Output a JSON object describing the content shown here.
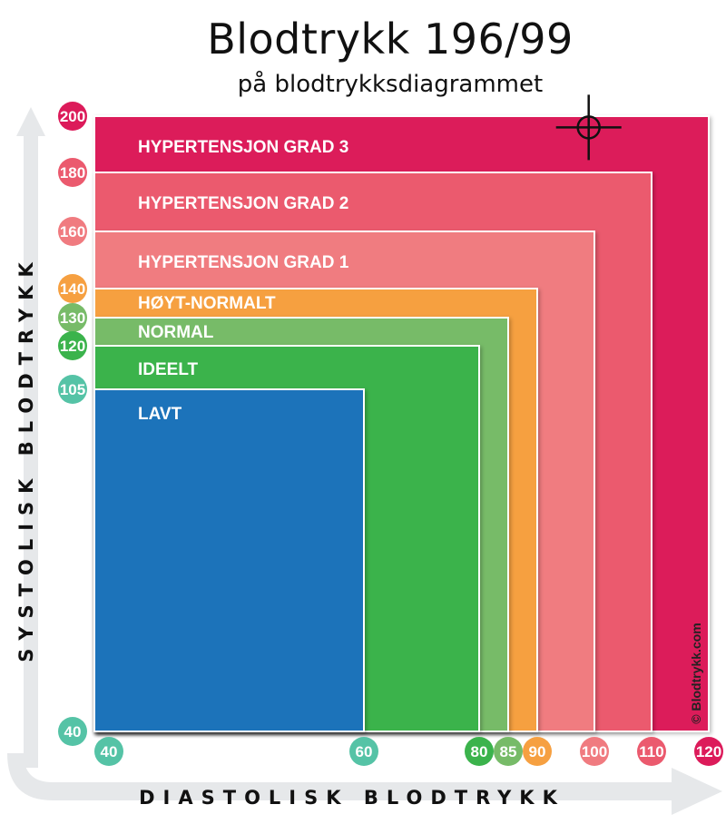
{
  "chart_data": {
    "type": "area",
    "title": "Blodtrykk 196/99",
    "subtitle": "på blodtrykksdiagrammet",
    "xlabel": "DIASTOLISK BLODTRYKK",
    "ylabel": "SYSTOLISK BLODTRYKK",
    "credit": "© Blodtrykk.com",
    "zones": [
      {
        "name": "HYPERTENSJON GRAD 3",
        "diastolic_max": 120,
        "systolic_max": 200,
        "color": "#dc1b5a"
      },
      {
        "name": "HYPERTENSJON GRAD 2",
        "diastolic_max": 110,
        "systolic_max": 180,
        "color": "#eb5a6e"
      },
      {
        "name": "HYPERTENSJON GRAD 1",
        "diastolic_max": 100,
        "systolic_max": 160,
        "color": "#f07b80"
      },
      {
        "name": "HØYT-NORMALT",
        "diastolic_max": 90,
        "systolic_max": 140,
        "color": "#f6a041"
      },
      {
        "name": "NORMAL",
        "diastolic_max": 85,
        "systolic_max": 130,
        "color": "#77bb68"
      },
      {
        "name": "IDEELT",
        "diastolic_max": 80,
        "systolic_max": 120,
        "color": "#3bb34c"
      },
      {
        "name": "LAVT",
        "diastolic_max": 60,
        "systolic_max": 105,
        "color": "#1e73ba"
      }
    ],
    "x_ticks": [
      {
        "label": "40",
        "color": "#55c3a6"
      },
      {
        "label": "60",
        "color": "#55c3a6"
      },
      {
        "label": "80",
        "color": "#3bb34c"
      },
      {
        "label": "85",
        "color": "#77bb68"
      },
      {
        "label": "90",
        "color": "#f6a041"
      },
      {
        "label": "100",
        "color": "#f07b80"
      },
      {
        "label": "110",
        "color": "#eb5a6e"
      },
      {
        "label": "120",
        "color": "#dc1b5a"
      }
    ],
    "y_ticks": [
      {
        "label": "200",
        "color": "#dc1b5a"
      },
      {
        "label": "180",
        "color": "#eb5a6e"
      },
      {
        "label": "160",
        "color": "#f07b80"
      },
      {
        "label": "140",
        "color": "#f6a041"
      },
      {
        "label": "130",
        "color": "#77bb68"
      },
      {
        "label": "120",
        "color": "#3bb34c"
      },
      {
        "label": "105",
        "color": "#55c3a6"
      },
      {
        "label": "40",
        "color": "#55c3a6"
      }
    ],
    "marker": {
      "systolic": 196,
      "diastolic": 99
    },
    "colors": {
      "axis_arrow": "#e6e8ea"
    }
  }
}
